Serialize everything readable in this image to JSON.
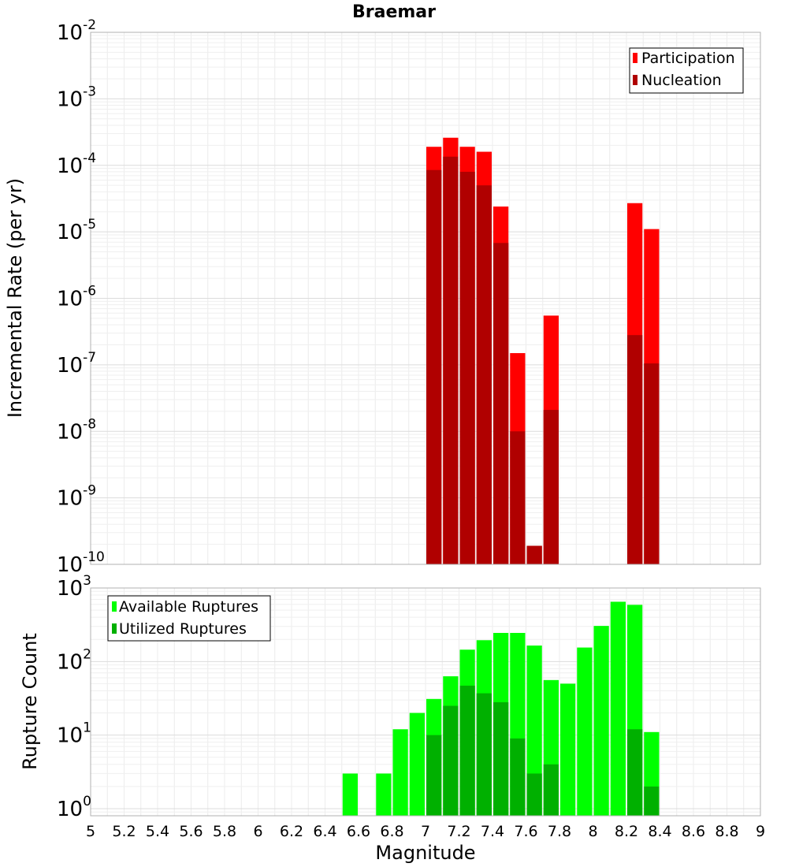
{
  "chart_data": [
    {
      "type": "bar",
      "title": "Braemar",
      "ylabel": "Incremental Rate (per yr)",
      "xlim": [
        5,
        9
      ],
      "ylim": [
        1e-10,
        0.01
      ],
      "yscale": "log",
      "grid": true,
      "legend_position": "top-right",
      "y_ticks": [
        {
          "base": "10",
          "exp": "-10"
        },
        {
          "base": "10",
          "exp": "-9"
        },
        {
          "base": "10",
          "exp": "-8"
        },
        {
          "base": "10",
          "exp": "-7"
        },
        {
          "base": "10",
          "exp": "-6"
        },
        {
          "base": "10",
          "exp": "-5"
        },
        {
          "base": "10",
          "exp": "-4"
        },
        {
          "base": "10",
          "exp": "-3"
        },
        {
          "base": "10",
          "exp": "-2"
        }
      ],
      "series": [
        {
          "name": "Participation",
          "color": "#ff0000",
          "points": [
            {
              "x": 7.05,
              "y": 0.00019
            },
            {
              "x": 7.15,
              "y": 0.00026
            },
            {
              "x": 7.25,
              "y": 0.00019
            },
            {
              "x": 7.35,
              "y": 0.00016
            },
            {
              "x": 7.45,
              "y": 2.4e-05
            },
            {
              "x": 7.55,
              "y": 1.5e-07
            },
            {
              "x": 7.65,
              "y": 1.9e-10
            },
            {
              "x": 7.75,
              "y": 5.5e-07
            },
            {
              "x": 8.25,
              "y": 2.7e-05
            },
            {
              "x": 8.35,
              "y": 1.1e-05
            }
          ]
        },
        {
          "name": "Nucleation",
          "color": "#b00000",
          "points": [
            {
              "x": 7.05,
              "y": 8.5e-05
            },
            {
              "x": 7.15,
              "y": 0.000135
            },
            {
              "x": 7.25,
              "y": 8e-05
            },
            {
              "x": 7.35,
              "y": 5e-05
            },
            {
              "x": 7.45,
              "y": 6.8e-06
            },
            {
              "x": 7.55,
              "y": 1e-08
            },
            {
              "x": 7.65,
              "y": 1.9e-10
            },
            {
              "x": 7.75,
              "y": 2.1e-08
            },
            {
              "x": 8.25,
              "y": 2.8e-07
            },
            {
              "x": 8.35,
              "y": 1.05e-07
            }
          ]
        }
      ]
    },
    {
      "type": "bar",
      "xlabel": "Magnitude",
      "ylabel": "Rupture Count",
      "xlim": [
        5,
        9
      ],
      "ylim": [
        0.8,
        1000
      ],
      "yscale": "log",
      "grid": true,
      "legend_position": "top-left",
      "x_ticks": [
        "5",
        "5.2",
        "5.4",
        "5.6",
        "5.8",
        "6",
        "6.2",
        "6.4",
        "6.6",
        "6.8",
        "7",
        "7.2",
        "7.4",
        "7.6",
        "7.8",
        "8",
        "8.2",
        "8.4",
        "8.6",
        "8.8",
        "9"
      ],
      "y_ticks": [
        {
          "base": "10",
          "exp": "0"
        },
        {
          "base": "10",
          "exp": "1"
        },
        {
          "base": "10",
          "exp": "2"
        },
        {
          "base": "10",
          "exp": "3"
        }
      ],
      "series": [
        {
          "name": "Available Ruptures",
          "color": "#00ff00",
          "points": [
            {
              "x": 6.55,
              "y": 3
            },
            {
              "x": 6.75,
              "y": 3
            },
            {
              "x": 6.85,
              "y": 12
            },
            {
              "x": 6.95,
              "y": 20
            },
            {
              "x": 7.05,
              "y": 31
            },
            {
              "x": 7.15,
              "y": 63
            },
            {
              "x": 7.25,
              "y": 145
            },
            {
              "x": 7.35,
              "y": 195
            },
            {
              "x": 7.45,
              "y": 245
            },
            {
              "x": 7.55,
              "y": 245
            },
            {
              "x": 7.65,
              "y": 165
            },
            {
              "x": 7.75,
              "y": 56
            },
            {
              "x": 7.85,
              "y": 50
            },
            {
              "x": 7.95,
              "y": 155
            },
            {
              "x": 8.05,
              "y": 305
            },
            {
              "x": 8.15,
              "y": 650
            },
            {
              "x": 8.25,
              "y": 590
            },
            {
              "x": 8.35,
              "y": 11
            }
          ]
        },
        {
          "name": "Utilized Ruptures",
          "color": "#00b000",
          "points": [
            {
              "x": 7.05,
              "y": 10
            },
            {
              "x": 7.15,
              "y": 25
            },
            {
              "x": 7.25,
              "y": 47
            },
            {
              "x": 7.35,
              "y": 37
            },
            {
              "x": 7.45,
              "y": 28
            },
            {
              "x": 7.55,
              "y": 9
            },
            {
              "x": 7.65,
              "y": 3
            },
            {
              "x": 7.75,
              "y": 4
            },
            {
              "x": 8.25,
              "y": 12
            },
            {
              "x": 8.35,
              "y": 2
            }
          ]
        }
      ]
    }
  ]
}
